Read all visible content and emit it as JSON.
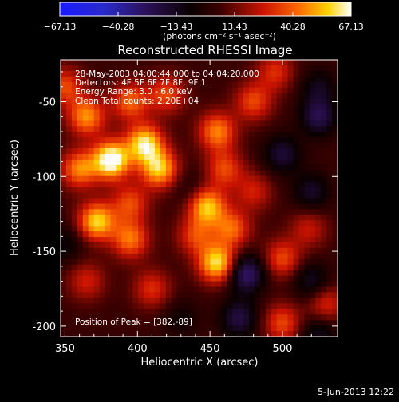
{
  "chart_data": {
    "type": "heatmap",
    "title": "Reconstructed RHESSI Image",
    "xlabel": "Heliocentric X (arcsec)",
    "ylabel": "Heliocentric Y (arcsec)",
    "xlim": [
      347,
      538
    ],
    "ylim": [
      -207,
      -22
    ],
    "x_ticks": [
      350,
      400,
      450,
      500
    ],
    "y_ticks": [
      -50,
      -100,
      -150,
      -200
    ],
    "x_tick_labels": [
      "350",
      "400",
      "450",
      "500"
    ],
    "y_tick_labels": [
      "-50",
      "-100",
      "-150",
      "-200"
    ],
    "colorbar": {
      "range": [
        -67.13,
        67.13
      ],
      "tick_labels": [
        "-67.13",
        "-40.28",
        "-13.43",
        "13.43",
        "40.28",
        "67.13"
      ],
      "unit_label": "(photons cm⁻² s⁻¹ asec⁻²)",
      "colormap": "blue-black-red-yellow-white"
    },
    "annotations": [
      "28-May-2003 04:00:44.000 to 04:04:20.000",
      "Detectors: 4F 5F 6F 7F 8F, 9F 1",
      "Energy Range: 3.0 - 6.0 keV",
      "Clean     Total counts: 2.20E+04",
      "Position of Peak = [382,-89]"
    ],
    "peak": [
      382,
      -89
    ],
    "sources": [
      {
        "x": 382,
        "y": -89,
        "amp": 67
      },
      {
        "x": 405,
        "y": -78,
        "amp": 55
      },
      {
        "x": 415,
        "y": -95,
        "amp": 50
      },
      {
        "x": 360,
        "y": -95,
        "amp": 40
      },
      {
        "x": 365,
        "y": -60,
        "amp": 42
      },
      {
        "x": 395,
        "y": -50,
        "amp": 35
      },
      {
        "x": 350,
        "y": -40,
        "amp": 30
      },
      {
        "x": 420,
        "y": -45,
        "amp": 30
      },
      {
        "x": 455,
        "y": -70,
        "amp": 40
      },
      {
        "x": 460,
        "y": -95,
        "amp": 30
      },
      {
        "x": 448,
        "y": -120,
        "amp": 50
      },
      {
        "x": 465,
        "y": -135,
        "amp": 35
      },
      {
        "x": 455,
        "y": -158,
        "amp": 55
      },
      {
        "x": 440,
        "y": -140,
        "amp": 28
      },
      {
        "x": 372,
        "y": -130,
        "amp": 52
      },
      {
        "x": 395,
        "y": -142,
        "amp": 38
      },
      {
        "x": 395,
        "y": -118,
        "amp": 30
      },
      {
        "x": 365,
        "y": -170,
        "amp": 22
      },
      {
        "x": 410,
        "y": -175,
        "amp": 25
      },
      {
        "x": 480,
        "y": -50,
        "amp": 30
      },
      {
        "x": 495,
        "y": -30,
        "amp": 25
      },
      {
        "x": 480,
        "y": -110,
        "amp": 22
      },
      {
        "x": 500,
        "y": -155,
        "amp": 30
      },
      {
        "x": 518,
        "y": -135,
        "amp": 20
      },
      {
        "x": 500,
        "y": -198,
        "amp": 30
      },
      {
        "x": 530,
        "y": -185,
        "amp": 25
      },
      {
        "x": 525,
        "y": -40,
        "amp": -18
      },
      {
        "x": 525,
        "y": -60,
        "amp": -30
      },
      {
        "x": 500,
        "y": -85,
        "amp": -25
      },
      {
        "x": 520,
        "y": -110,
        "amp": -22
      },
      {
        "x": 475,
        "y": -165,
        "amp": -38
      },
      {
        "x": 520,
        "y": -170,
        "amp": -22
      },
      {
        "x": 470,
        "y": -195,
        "amp": -28
      },
      {
        "x": 525,
        "y": -205,
        "amp": -20
      },
      {
        "x": 350,
        "y": -145,
        "amp": -15
      },
      {
        "x": 430,
        "y": -195,
        "amp": -12
      },
      {
        "x": 437,
        "y": -108,
        "amp": -10
      }
    ],
    "source_sigma_arcsec": 9,
    "background_level": 6
  },
  "footer": {
    "date": "5-Jun-2013 12:22"
  }
}
